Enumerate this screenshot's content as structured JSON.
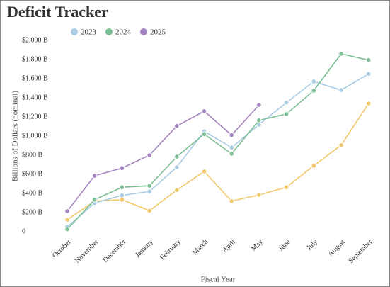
{
  "chart_data": {
    "type": "line",
    "title": "Deficit Tracker",
    "x_label": "Fiscal Year",
    "y_label": "Billions of Dollars (nominal)",
    "categories": [
      "October",
      "November",
      "December",
      "January",
      "February",
      "March",
      "April",
      "May",
      "June",
      "July",
      "August",
      "September"
    ],
    "series": [
      {
        "color": "#f3c86a",
        "values": [
          125,
          320,
          335,
          220,
          435,
          630,
          320,
          385,
          465,
          690,
          905,
          1340
        ]
      },
      {
        "name": "2023",
        "color": "#a9cce3",
        "values": [
          50,
          300,
          380,
          420,
          675,
          1050,
          880,
          1120,
          1350,
          1570,
          1480,
          1650
        ]
      },
      {
        "name": "2024",
        "color": "#7dbf94",
        "values": [
          25,
          335,
          465,
          480,
          785,
          1020,
          815,
          1165,
          1230,
          1475,
          1860,
          1795
        ]
      },
      {
        "name": "2025",
        "color": "#a585c1",
        "values": [
          215,
          585,
          665,
          800,
          1105,
          1260,
          1010,
          1325,
          null,
          null,
          null,
          null
        ]
      }
    ],
    "ylim": [
      0,
      2000
    ],
    "yticks": [
      0,
      {
        "value": 200,
        "label": "$200 B"
      },
      {
        "value": 400,
        "label": "$400 B"
      },
      {
        "value": 600,
        "label": "$600 B"
      },
      {
        "value": 800,
        "label": "$800 B"
      },
      {
        "value": 1000,
        "label": "$1,000 B"
      },
      {
        "value": 1200,
        "label": "$1,200 B"
      },
      {
        "value": 1400,
        "label": "$1,400 B"
      },
      {
        "value": 1600,
        "label": "$1,600 B"
      },
      {
        "value": 1800,
        "label": "$1,800 B"
      },
      {
        "value": 2000,
        "label": "$2,000 B"
      }
    ],
    "grid": false
  }
}
